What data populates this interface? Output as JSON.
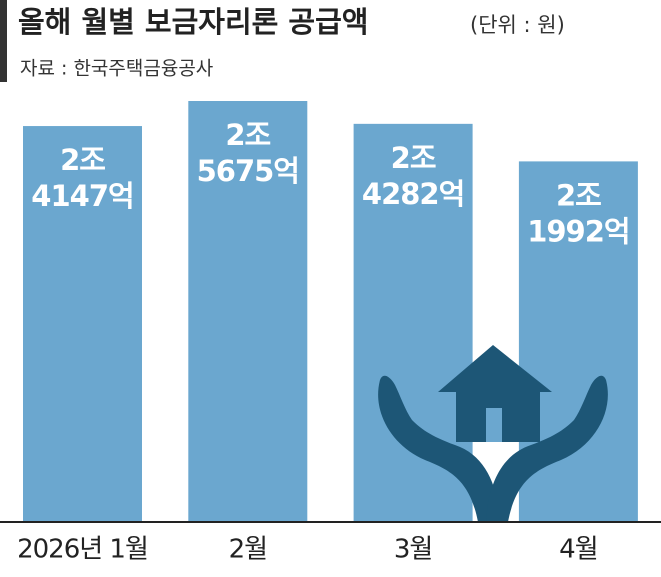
{
  "chart_data": {
    "type": "bar",
    "title": "올해 월별 보금자리론 공급액",
    "unit": "(단위 : 원)",
    "source": "자료 : 한국주택금융공사",
    "categories": [
      "2026년 1월",
      "2월",
      "3월",
      "4월"
    ],
    "values": [
      24147,
      25675,
      24282,
      21992
    ],
    "value_labels": [
      [
        "2조",
        "4147억"
      ],
      [
        "2조",
        "5675억"
      ],
      [
        "2조",
        "4282억"
      ],
      [
        "2조",
        "1992억"
      ]
    ],
    "color": "#6ba7cf"
  }
}
